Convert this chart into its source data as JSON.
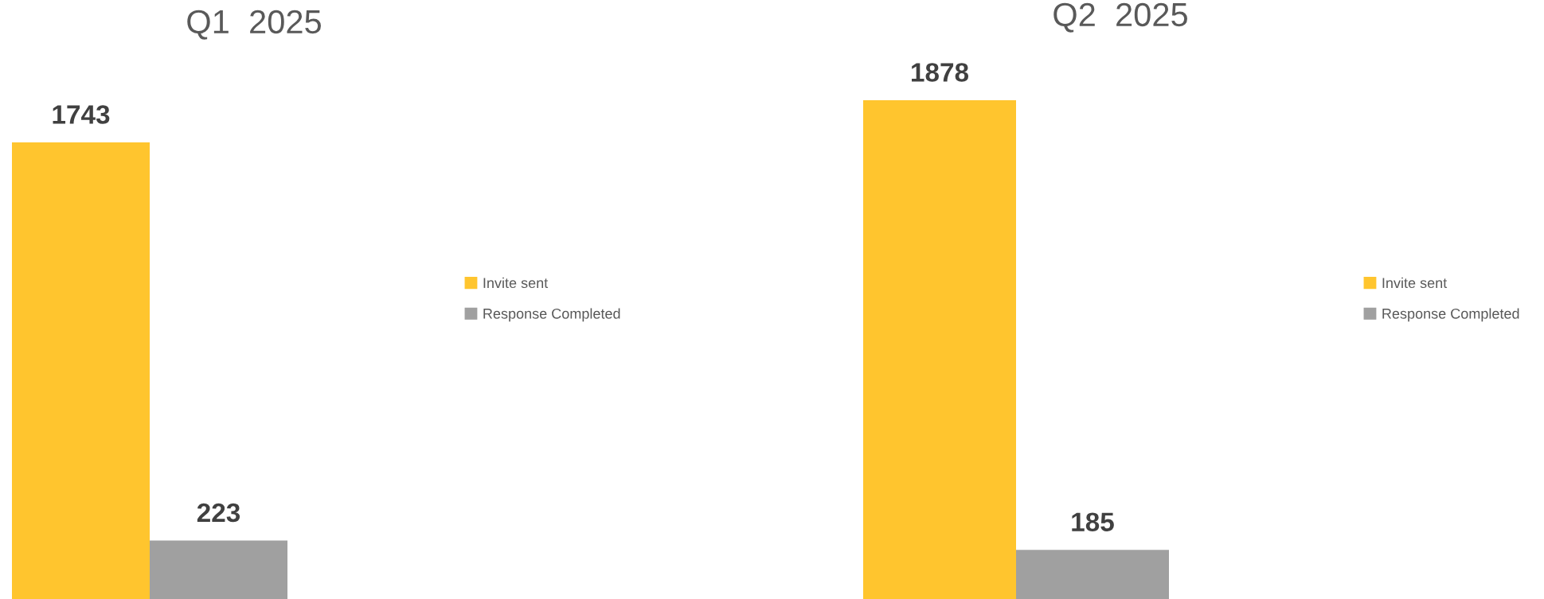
{
  "chart_data": [
    {
      "type": "bar",
      "title": "Q1  2025",
      "categories": [
        null
      ],
      "series": [
        {
          "name": "Invite sent",
          "color": "#ffc52e",
          "values": [
            1743
          ]
        },
        {
          "name": "Response Completed",
          "color": "#a0a0a0",
          "values": [
            223
          ]
        }
      ],
      "data_labels": true,
      "legend": "right"
    },
    {
      "type": "bar",
      "title": "Q2  2025",
      "categories": [
        null
      ],
      "series": [
        {
          "name": "Invite sent",
          "color": "#ffc52e",
          "values": [
            1878
          ]
        },
        {
          "name": "Response Completed",
          "color": "#a0a0a0",
          "values": [
            185
          ]
        }
      ],
      "data_labels": true,
      "legend": "right"
    }
  ]
}
